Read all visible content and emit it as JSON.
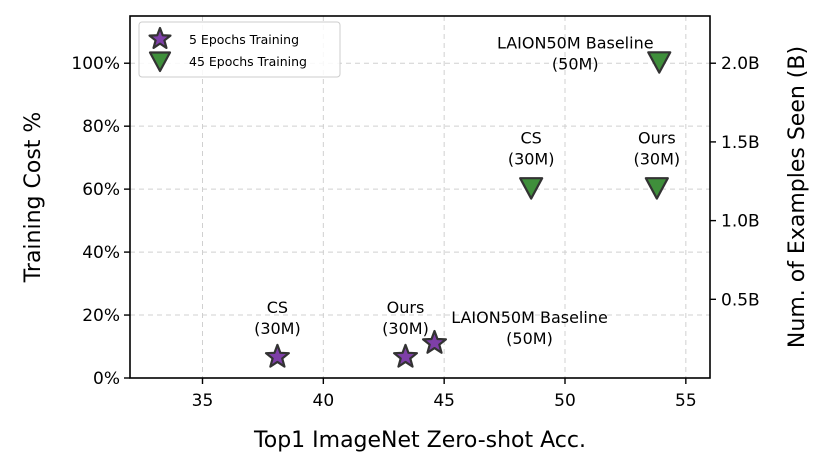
{
  "chart_data": {
    "type": "scatter",
    "xlabel": "Top1 ImageNet Zero-shot Acc.",
    "ylabel": "Training Cost %",
    "y2label": "Num. of Examples Seen (B)",
    "xlim": [
      32,
      56
    ],
    "ylim": [
      0,
      115
    ],
    "y2lim": [
      0,
      2.3
    ],
    "grid": true,
    "legend_position": "upper-left",
    "x_ticks": [
      35,
      40,
      45,
      50,
      55
    ],
    "x_tick_labels": [
      "35",
      "40",
      "45",
      "50",
      "55"
    ],
    "y_ticks": [
      0,
      20,
      40,
      60,
      80,
      100
    ],
    "y_tick_labels": [
      "0%",
      "20%",
      "40%",
      "60%",
      "80%",
      "100%"
    ],
    "y2_ticks": [
      0.5,
      1.0,
      1.5,
      2.0
    ],
    "y2_tick_labels": [
      "0.5B",
      "1.0B",
      "1.5B",
      "2.0B"
    ],
    "series": [
      {
        "name": "5 Epochs Training",
        "marker": "star",
        "color": "#7e3fa8",
        "edge_color": "#333333",
        "points": [
          {
            "x": 38.1,
            "y": 6.7,
            "label": [
              "CS",
              "(30M)"
            ],
            "label_pos": "above"
          },
          {
            "x": 43.4,
            "y": 6.7,
            "label": [
              "Ours",
              "(30M)"
            ],
            "label_pos": "above"
          },
          {
            "x": 44.6,
            "y": 11.1,
            "label": [
              "LAION50M Baseline",
              "(50M)"
            ],
            "label_pos": "right"
          }
        ]
      },
      {
        "name": "45 Epochs Training",
        "marker": "triangle-down",
        "color": "#3f8f3b",
        "edge_color": "#333333",
        "points": [
          {
            "x": 48.6,
            "y": 60.5,
            "label": [
              "CS",
              "(30M)"
            ],
            "label_pos": "above"
          },
          {
            "x": 53.8,
            "y": 60.5,
            "label": [
              "Ours",
              "(30M)"
            ],
            "label_pos": "above"
          },
          {
            "x": 53.9,
            "y": 100.5,
            "label": [
              "LAION50M Baseline",
              "(50M)"
            ],
            "label_pos": "left"
          }
        ]
      }
    ]
  }
}
